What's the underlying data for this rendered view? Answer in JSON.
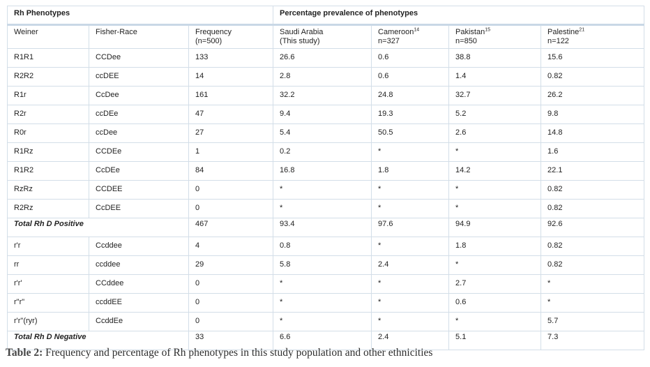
{
  "table": {
    "group_headers": {
      "rh_phenotypes": "Rh Phenotypes",
      "percentage_prevalence": "Percentage prevalence of phenotypes"
    },
    "columns": [
      {
        "line1": "Weiner",
        "sup": "",
        "line2": ""
      },
      {
        "line1": "Fisher-Race",
        "sup": "",
        "line2": ""
      },
      {
        "line1": "Frequency",
        "sup": "",
        "line2": "(n=500)"
      },
      {
        "line1": "Saudi Arabia",
        "sup": "",
        "line2": "(This study)"
      },
      {
        "line1": "Cameroon",
        "sup": "14",
        "line2": "n=327"
      },
      {
        "line1": "Pakistan",
        "sup": "15",
        "line2": "n=850"
      },
      {
        "line1": "Palestine",
        "sup": "21",
        "line2": "n=122"
      }
    ],
    "rows": [
      {
        "type": "data",
        "cells": [
          "R1R1",
          "CCDee",
          "133",
          "26.6",
          "0.6",
          "38.8",
          "15.6"
        ]
      },
      {
        "type": "data",
        "cells": [
          "R2R2",
          "ccDEE",
          "14",
          "2.8",
          "0.6",
          "1.4",
          "0.82"
        ]
      },
      {
        "type": "data",
        "cells": [
          "R1r",
          "CcDee",
          "161",
          "32.2",
          "24.8",
          "32.7",
          "26.2"
        ]
      },
      {
        "type": "data",
        "cells": [
          "R2r",
          "ccDEe",
          "47",
          "9.4",
          "19.3",
          "5.2",
          "9.8"
        ]
      },
      {
        "type": "data",
        "cells": [
          "R0r",
          "ccDee",
          "27",
          "5.4",
          "50.5",
          "2.6",
          "14.8"
        ]
      },
      {
        "type": "data",
        "cells": [
          "R1Rz",
          "CCDEe",
          "1",
          "0.2",
          "*",
          "*",
          "1.6"
        ]
      },
      {
        "type": "data",
        "cells": [
          "R1R2",
          "CcDEe",
          "84",
          "16.8",
          "1.8",
          "14.2",
          "22.1"
        ]
      },
      {
        "type": "data",
        "cells": [
          "RzRz",
          "CCDEE",
          "0",
          "*",
          "*",
          "*",
          "0.82"
        ]
      },
      {
        "type": "data",
        "cells": [
          "R2Rz",
          "CcDEE",
          "0",
          "*",
          "*",
          "*",
          "0.82"
        ]
      },
      {
        "type": "total",
        "label": "Total Rh D Positive",
        "cells": [
          "467",
          "93.4",
          "97.6",
          "94.9",
          "92.6"
        ]
      },
      {
        "type": "data",
        "cells": [
          "r'r",
          "Ccddee",
          "4",
          "0.8",
          "*",
          "1.8",
          "0.82"
        ]
      },
      {
        "type": "data",
        "cells": [
          "rr",
          "ccddee",
          "29",
          "5.8",
          "2.4",
          "*",
          "0.82"
        ]
      },
      {
        "type": "data",
        "cells": [
          "r'r'",
          "CCddee",
          "0",
          "*",
          "*",
          "2.7",
          "*"
        ]
      },
      {
        "type": "data",
        "cells": [
          "r\"r\"",
          "ccddEE",
          "0",
          "*",
          "*",
          "0.6",
          "*"
        ]
      },
      {
        "type": "data",
        "cells": [
          "r'r\"(ryr)",
          "CcddEe",
          "0",
          "*",
          "*",
          "*",
          "5.7"
        ]
      },
      {
        "type": "total",
        "label": "Total Rh D Negative",
        "cells": [
          "33",
          "6.6",
          "2.4",
          "5.1",
          "7.3"
        ]
      }
    ]
  },
  "caption": {
    "label": "Table 2:",
    "text": " Frequency and percentage of Rh phenotypes in this study population and other ethnicities"
  }
}
